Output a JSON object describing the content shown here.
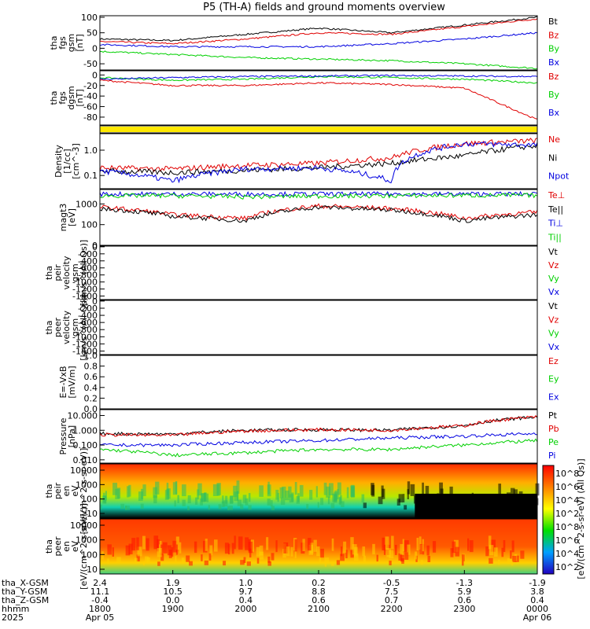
{
  "title": "P5 (TH-A) fields and ground moments overview",
  "colors": {
    "black": "#000000",
    "red": "#e00000",
    "green": "#00d000",
    "blue": "#0000e0",
    "yellow": "#ffe800"
  },
  "panels": [
    {
      "id": "fgs_gsm",
      "ylabel": [
        "tha",
        "fgs",
        "gsm",
        "[nT]"
      ],
      "ticks": [
        "100",
        "50",
        "0",
        "-50"
      ],
      "tick_values": [
        100,
        50,
        0,
        -50
      ],
      "ylim": [
        -70,
        105
      ],
      "legend": [
        {
          "text": "Bt",
          "color": "black"
        },
        {
          "text": "Bz",
          "color": "red"
        },
        {
          "text": "By",
          "color": "green"
        },
        {
          "text": "Bx",
          "color": "blue"
        }
      ]
    },
    {
      "id": "fgs_dgsm",
      "ylabel": [
        "tha",
        "fgs",
        "dgsm",
        "[nT]"
      ],
      "ticks": [
        "0",
        "-20",
        "-40",
        "-60",
        "-80"
      ],
      "tick_values": [
        0,
        -20,
        -40,
        -60,
        -80
      ],
      "ylim": [
        -95,
        8
      ],
      "legend": [
        {
          "text": "Bz",
          "color": "red"
        },
        {
          "text": "By",
          "color": "green"
        },
        {
          "text": "Bx",
          "color": "blue"
        }
      ]
    },
    {
      "id": "flag",
      "ylabel": [],
      "ticks": [],
      "legend": []
    },
    {
      "id": "density",
      "ylabel": [
        "Density",
        "[1/cc]",
        "[cm^-3]"
      ],
      "ticks": [
        "1.0",
        "0.1"
      ],
      "tick_values": [
        1.0,
        0.1
      ],
      "ylim": [
        0.03,
        4.5
      ],
      "log": true,
      "legend": [
        {
          "text": "Ne",
          "color": "red"
        },
        {
          "text": "Ni",
          "color": "black"
        },
        {
          "text": "Npot",
          "color": "blue"
        }
      ]
    },
    {
      "id": "temperature",
      "ylabel": [
        "magt3",
        "[eV]"
      ],
      "ticks": [
        "1000",
        "100",
        "0"
      ],
      "tick_values": [
        1000,
        100
      ],
      "ylim": [
        10,
        5000
      ],
      "log": true,
      "legend": [
        {
          "text": "Te⊥",
          "color": "red"
        },
        {
          "text": "Te||",
          "color": "black"
        },
        {
          "text": "Ti⊥",
          "color": "blue"
        },
        {
          "text": "Ti||",
          "color": "green"
        }
      ]
    },
    {
      "id": "peir_vel",
      "ylabel": [
        "tha",
        "peir",
        "velocity",
        "gsm",
        "[km/s^(All Qs)]"
      ],
      "ticks": [
        "0",
        "-200",
        "-400",
        "-600",
        "-800",
        "-1000",
        "-1200",
        "-1400"
      ],
      "tick_values": [
        0,
        -200,
        -400,
        -600,
        -800,
        -1000,
        -1200,
        -1400
      ],
      "ylim": [
        -1500,
        20
      ],
      "legend": [
        {
          "text": "Vt",
          "color": "black"
        },
        {
          "text": "Vz",
          "color": "red"
        },
        {
          "text": "Vy",
          "color": "green"
        },
        {
          "text": "Vx",
          "color": "blue"
        }
      ]
    },
    {
      "id": "peer_vel",
      "ylabel": [
        "tha",
        "peer",
        "velocity",
        "gsm",
        "[km/s^(All Qs)]"
      ],
      "ticks": [
        "0",
        "-200",
        "-400",
        "-600",
        "-800",
        "-1000",
        "-1200",
        "-1400"
      ],
      "tick_values": [
        0,
        -200,
        -400,
        -600,
        -800,
        -1000,
        -1200,
        -1400
      ],
      "ylim": [
        -1500,
        20
      ],
      "legend": [
        {
          "text": "Vt",
          "color": "black"
        },
        {
          "text": "Vz",
          "color": "red"
        },
        {
          "text": "Vy",
          "color": "green"
        },
        {
          "text": "Vx",
          "color": "blue"
        }
      ]
    },
    {
      "id": "efield",
      "ylabel": [
        "E=-VxB",
        "[mV/m]"
      ],
      "ticks": [
        "1.0",
        "0.8",
        "0.6",
        "0.4",
        "0.2",
        "0.0"
      ],
      "tick_values": [
        1.0,
        0.8,
        0.6,
        0.4,
        0.2,
        0.0
      ],
      "ylim": [
        0,
        1.0
      ],
      "legend": [
        {
          "text": "Ez",
          "color": "red"
        },
        {
          "text": "Ey",
          "color": "green"
        },
        {
          "text": "Ex",
          "color": "blue"
        }
      ]
    },
    {
      "id": "pressure",
      "ylabel": [
        "Pressure",
        "[nPa]"
      ],
      "ticks": [
        "10.000",
        "1.000",
        "0.100",
        "0.010"
      ],
      "tick_values": [
        10,
        1,
        0.1,
        0.01
      ],
      "ylim": [
        0.006,
        25
      ],
      "log": true,
      "legend": [
        {
          "text": "Pt",
          "color": "black"
        },
        {
          "text": "Pb",
          "color": "red"
        },
        {
          "text": "Pe",
          "color": "green"
        },
        {
          "text": "Pi",
          "color": "blue"
        }
      ]
    },
    {
      "id": "peir_spec",
      "ylabel": [
        "tha",
        "peir",
        "en",
        "eV",
        "[eV/(cm^2-s-sr-eV)]"
      ],
      "ticks": [
        "10000",
        "1000",
        "100",
        "10"
      ],
      "tick_values": [
        10000,
        1000,
        100,
        10
      ],
      "legend": []
    },
    {
      "id": "peer_spec",
      "ylabel": [
        "tha",
        "peer",
        "en",
        "eV",
        "[eV/(cm^2-s-sr-eV)]"
      ],
      "ticks": [
        "10000",
        "1000",
        "100",
        "10"
      ],
      "tick_values": [
        10000,
        1000,
        100,
        10
      ],
      "legend": []
    }
  ],
  "colorbar": {
    "label": "[eV/(cm^2-s-sr-eV) (All Qs)]",
    "ticks": [
      "10^8",
      "10^6",
      "10^4",
      "10^2",
      "10^8",
      "10^6",
      "10^4",
      "10^2"
    ]
  },
  "xaxis": {
    "rows": [
      {
        "name": "tha_X-GSM",
        "values": [
          "2.4",
          "1.9",
          "1.0",
          "0.2",
          "-0.5",
          "-1.3",
          "-1.9"
        ]
      },
      {
        "name": "tha_Y-GSM",
        "values": [
          "11.1",
          "10.5",
          "9.7",
          "8.8",
          "7.5",
          "5.9",
          "3.8"
        ]
      },
      {
        "name": "tha_Z-GSM",
        "values": [
          "-0.4",
          "0.0",
          "0.4",
          "0.6",
          "0.7",
          "0.6",
          "0.4"
        ]
      },
      {
        "name": "hhmm",
        "values": [
          "1800",
          "1900",
          "2000",
          "2100",
          "2200",
          "2300",
          "0000"
        ]
      },
      {
        "name": "2025",
        "values": [
          "Apr 05",
          "",
          "",
          "",
          "",
          "",
          "Apr 06"
        ]
      }
    ]
  },
  "chart_data": {
    "type": "line",
    "title": "P5 (TH-A) fields and ground moments overview",
    "x": [
      "1800",
      "1900",
      "2000",
      "2100",
      "2200",
      "2300",
      "0000"
    ],
    "series": [
      {
        "name": "Bt",
        "panel": "fgs_gsm",
        "values": [
          30,
          25,
          45,
          65,
          50,
          75,
          100
        ]
      },
      {
        "name": "Bz",
        "panel": "fgs_gsm",
        "values": [
          22,
          15,
          30,
          50,
          45,
          70,
          95
        ]
      },
      {
        "name": "By",
        "panel": "fgs_gsm",
        "values": [
          -10,
          -20,
          -30,
          -35,
          -40,
          -50,
          -65
        ]
      },
      {
        "name": "Bx",
        "panel": "fgs_gsm",
        "values": [
          12,
          5,
          5,
          5,
          15,
          30,
          50
        ]
      },
      {
        "name": "Bz",
        "panel": "fgs_dgsm",
        "values": [
          -10,
          -20,
          -20,
          -15,
          -18,
          -25,
          -85
        ]
      },
      {
        "name": "By",
        "panel": "fgs_dgsm",
        "values": [
          -5,
          -10,
          -8,
          -3,
          -5,
          -8,
          -15
        ]
      },
      {
        "name": "Bx",
        "panel": "fgs_dgsm",
        "values": [
          -8,
          -5,
          -3,
          -2,
          -1,
          -2,
          -3
        ]
      },
      {
        "name": "Ne",
        "panel": "density",
        "values": [
          0.2,
          0.18,
          0.25,
          0.3,
          0.5,
          1.8,
          2.4
        ]
      },
      {
        "name": "Ni",
        "panel": "density",
        "values": [
          0.15,
          0.13,
          0.16,
          0.2,
          0.3,
          0.6,
          1.5
        ]
      },
      {
        "name": "Npot",
        "panel": "density",
        "values": [
          0.15,
          0.06,
          0.18,
          0.2,
          0.06,
          1.8,
          1.6
        ]
      },
      {
        "name": "Te⊥",
        "panel": "temperature",
        "values": [
          700,
          300,
          200,
          800,
          600,
          200,
          400
        ]
      },
      {
        "name": "Te||",
        "panel": "temperature",
        "values": [
          600,
          250,
          150,
          700,
          500,
          150,
          300
        ]
      },
      {
        "name": "Ti⊥",
        "panel": "temperature",
        "values": [
          3000,
          3000,
          3000,
          3000,
          3000,
          3000,
          3000
        ]
      },
      {
        "name": "Ti||",
        "panel": "temperature",
        "values": [
          2500,
          2500,
          2200,
          2400,
          2500,
          2600,
          2600
        ]
      },
      {
        "name": "Pt",
        "panel": "pressure",
        "values": [
          0.6,
          0.55,
          1.0,
          1.1,
          1.0,
          2.0,
          8.0
        ]
      },
      {
        "name": "Pb",
        "panel": "pressure",
        "values": [
          0.5,
          0.45,
          0.9,
          1.1,
          1.0,
          2.0,
          8.0
        ]
      },
      {
        "name": "Pe",
        "panel": "pressure",
        "values": [
          0.05,
          0.02,
          0.03,
          0.05,
          0.05,
          0.1,
          0.2
        ]
      },
      {
        "name": "Pi",
        "panel": "pressure",
        "values": [
          0.1,
          0.1,
          0.15,
          0.2,
          0.3,
          0.4,
          0.6
        ]
      }
    ]
  }
}
